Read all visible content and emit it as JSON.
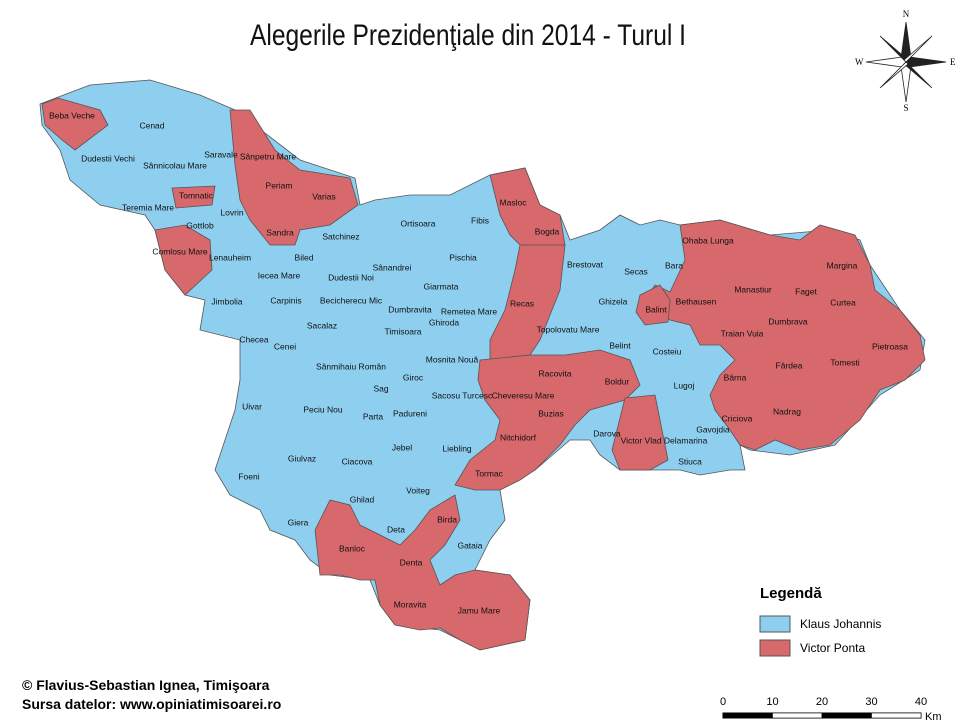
{
  "title": "Alegerile Prezidenţiale din 2014 - Turul I",
  "compass": {
    "n": "N",
    "s": "S",
    "e": "E",
    "w": "W"
  },
  "localities": [
    "Beba Veche",
    "Cenad",
    "Dudestii Vechi",
    "Sânnicolau Mare",
    "Saravale",
    "Sânpetru Mare",
    "Periam",
    "Varias",
    "Teremia Mare",
    "Tomnatic",
    "Lovrin",
    "Gottlob",
    "Sandra",
    "Comlosu Mare",
    "Lenauheim",
    "Satchinez",
    "Ortisoara",
    "Fibis",
    "Masloc",
    "Bogda",
    "Biled",
    "Iecea Mare",
    "Dudestii Noi",
    "Sânandrei",
    "Pischia",
    "Giarmata",
    "Carpinis",
    "Becicherecu Mic",
    "Recas",
    "Brestovat",
    "Secas",
    "Bara",
    "Ohaba Lunga",
    "Margina",
    "Jimbolia",
    "Dumbravita",
    "Remetea Mare",
    "Ghiroda",
    "Ghizela",
    "Bethausen",
    "Manastiur",
    "Faget",
    "Curtea",
    "Balint",
    "Topolovatu Mare",
    "Sacalaz",
    "Timisoara",
    "Dumbrava",
    "Traian Vuia",
    "Pietroasa",
    "Checea",
    "Cenei",
    "Sânmihaiu Român",
    "Mosnita Nouă",
    "Belint",
    "Costeiu",
    "Fârdea",
    "Tomesti",
    "Sag",
    "Giroc",
    "Racovita",
    "Boldur",
    "Lugoj",
    "Bârna",
    "Uivar",
    "Peciu Nou",
    "Parta",
    "Padureni",
    "Sacosu Turcesc",
    "Cheveresu Mare",
    "Buzias",
    "Nadrag",
    "Criciova",
    "Darova",
    "Victor Vlad Delamarina",
    "Gavojdia",
    "Nitchidorf",
    "Jebel",
    "Liebling",
    "Giulvaz",
    "Ciacova",
    "Stiuca",
    "Foeni",
    "Tormac",
    "Voiteg",
    "Ghilad",
    "Giera",
    "Birda",
    "Deta",
    "Banloc",
    "Gataia",
    "Denta",
    "Moravita",
    "Jamu Mare"
  ],
  "legend": {
    "title": "Legendă",
    "items": [
      {
        "label": "Klaus Johannis",
        "color": "#8ecff0"
      },
      {
        "label": "Victor Ponta",
        "color": "#d7686c"
      }
    ]
  },
  "credits": [
    "© Flavius-Sebastian Ignea, Timişoara",
    "Sursa datelor: www.opiniatimisoarei.ro"
  ],
  "scale": {
    "ticks": [
      0,
      10,
      20,
      30,
      40
    ],
    "unit": "Km"
  }
}
